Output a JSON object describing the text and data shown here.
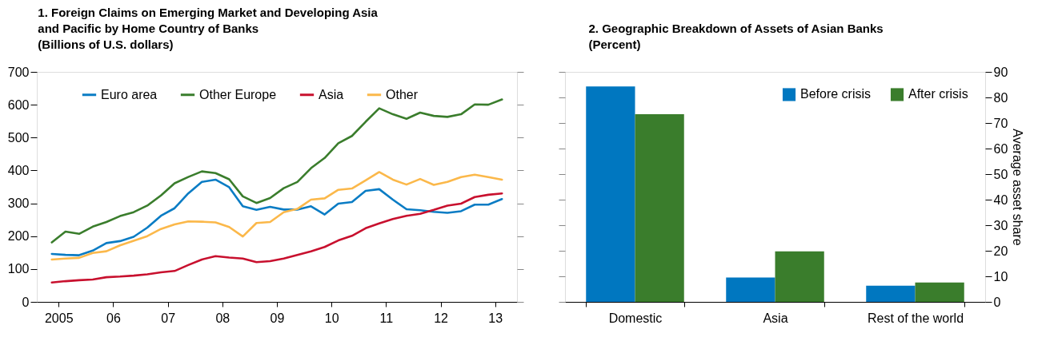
{
  "chart_data": [
    {
      "type": "line",
      "title": "1. Foreign Claims on Emerging Market and Developing Asia and Pacific by Home Country of Banks",
      "subtitle": "(Billions of U.S. dollars)",
      "x": [
        2004.875,
        2005.125,
        2005.375,
        2005.625,
        2005.875,
        2006.125,
        2006.375,
        2006.625,
        2006.875,
        2007.125,
        2007.375,
        2007.625,
        2007.875,
        2008.125,
        2008.375,
        2008.625,
        2008.875,
        2009.125,
        2009.375,
        2009.625,
        2009.875,
        2010.125,
        2010.375,
        2010.625,
        2010.875,
        2011.125,
        2011.375,
        2011.625,
        2011.875,
        2012.125,
        2012.375,
        2012.625,
        2012.875,
        2013.125
      ],
      "series": [
        {
          "name": "Euro area",
          "color": "#0a7cc4",
          "values": [
            146,
            143,
            142,
            156,
            179,
            185,
            198,
            226,
            262,
            285,
            330,
            365,
            372,
            349,
            291,
            280,
            289,
            281,
            281,
            291,
            266,
            299,
            304,
            338,
            343,
            311,
            282,
            279,
            274,
            271,
            276,
            296,
            296,
            313
          ]
        },
        {
          "name": "Other Europe",
          "color": "#3a7d2c",
          "values": [
            181,
            214,
            207,
            229,
            243,
            261,
            273,
            293,
            324,
            361,
            380,
            397,
            392,
            373,
            321,
            301,
            316,
            346,
            365,
            407,
            438,
            483,
            505,
            548,
            589,
            571,
            557,
            576,
            566,
            563,
            571,
            601,
            600,
            616
          ]
        },
        {
          "name": "Asia",
          "color": "#c8102e",
          "values": [
            59,
            63,
            66,
            68,
            75,
            77,
            80,
            84,
            90,
            94,
            112,
            129,
            139,
            135,
            132,
            121,
            124,
            132,
            143,
            154,
            167,
            187,
            201,
            224,
            239,
            252,
            262,
            268,
            280,
            293,
            299,
            319,
            326,
            330
          ]
        },
        {
          "name": "Other",
          "color": "#fbb84a",
          "values": [
            129,
            132,
            134,
            149,
            154,
            172,
            186,
            200,
            222,
            236,
            245,
            244,
            242,
            228,
            199,
            240,
            243,
            273,
            283,
            311,
            315,
            341,
            345,
            370,
            395,
            372,
            357,
            374,
            356,
            365,
            380,
            387,
            380,
            372
          ]
        }
      ],
      "xlim": [
        2004.6,
        2013.4
      ],
      "xticks": [
        {
          "value": 2005,
          "label": "2005"
        },
        {
          "value": 2006,
          "label": "06"
        },
        {
          "value": 2007,
          "label": "07"
        },
        {
          "value": 2008,
          "label": "08"
        },
        {
          "value": 2009,
          "label": "09"
        },
        {
          "value": 2010,
          "label": "10"
        },
        {
          "value": 2011,
          "label": "11"
        },
        {
          "value": 2012,
          "label": "12"
        },
        {
          "value": 2013,
          "label": "13"
        }
      ],
      "ylim": [
        0,
        700
      ],
      "yticks": [
        0,
        100,
        200,
        300,
        400,
        500,
        600,
        700
      ],
      "grid": false,
      "legend": "top",
      "marker": "none",
      "line_style": "solid"
    },
    {
      "type": "bar",
      "title": "2. Geographic Breakdown of Assets of Asian Banks",
      "subtitle": "(Percent)",
      "categories": [
        "Domestic",
        "Asia",
        "Rest of the world"
      ],
      "series": [
        {
          "name": "Before crisis",
          "color": "#0077c0",
          "values": [
            84.3,
            9.5,
            6.3
          ]
        },
        {
          "name": "After crisis",
          "color": "#3a7d2c",
          "values": [
            73.4,
            19.8,
            7.6
          ]
        }
      ],
      "ylabel": "Average asset share",
      "ylim": [
        0,
        90
      ],
      "yticks": [
        0,
        10,
        20,
        30,
        40,
        50,
        60,
        70,
        80,
        90
      ],
      "grid": false,
      "legend": "top right"
    }
  ]
}
